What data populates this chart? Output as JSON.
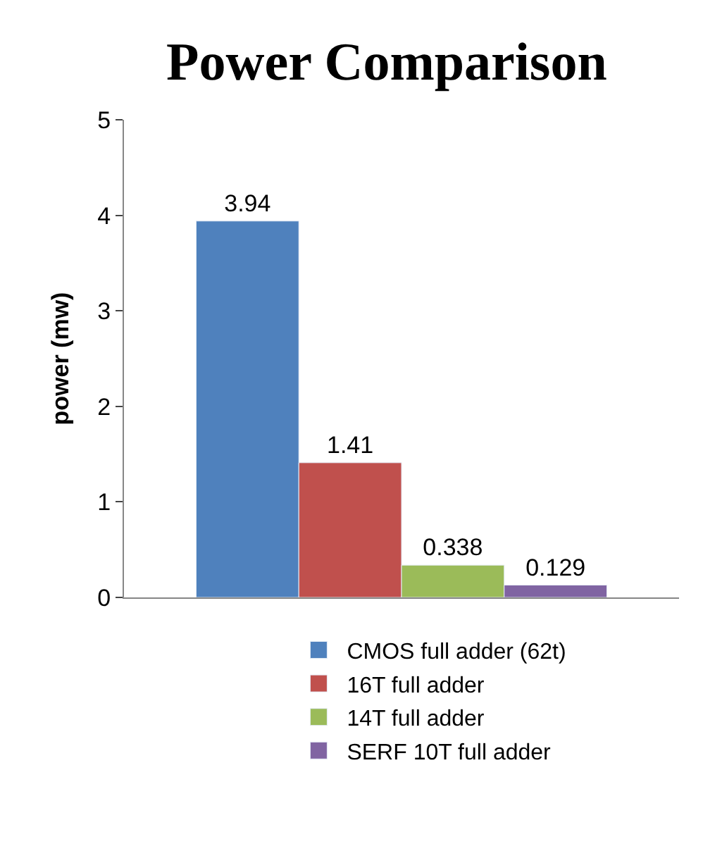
{
  "chart_data": {
    "type": "bar",
    "title": "Power Comparison",
    "ylabel": "power (mw)",
    "categories": [
      null
    ],
    "series": [
      {
        "name": "CMOS full adder (62t)",
        "color": "#4f81bd",
        "values": [
          3.94
        ]
      },
      {
        "name": "16T full adder",
        "color": "#c0504d",
        "values": [
          1.41
        ]
      },
      {
        "name": "14T full adder",
        "color": "#9bbb59",
        "values": [
          0.338
        ]
      },
      {
        "name": "SERF 10T full adder",
        "color": "#8064a2",
        "values": [
          0.129
        ]
      }
    ],
    "ylim": [
      0,
      5
    ],
    "yticks": [
      0,
      1,
      2,
      3,
      4,
      5
    ],
    "legend": "bottom",
    "data_labels": true
  }
}
